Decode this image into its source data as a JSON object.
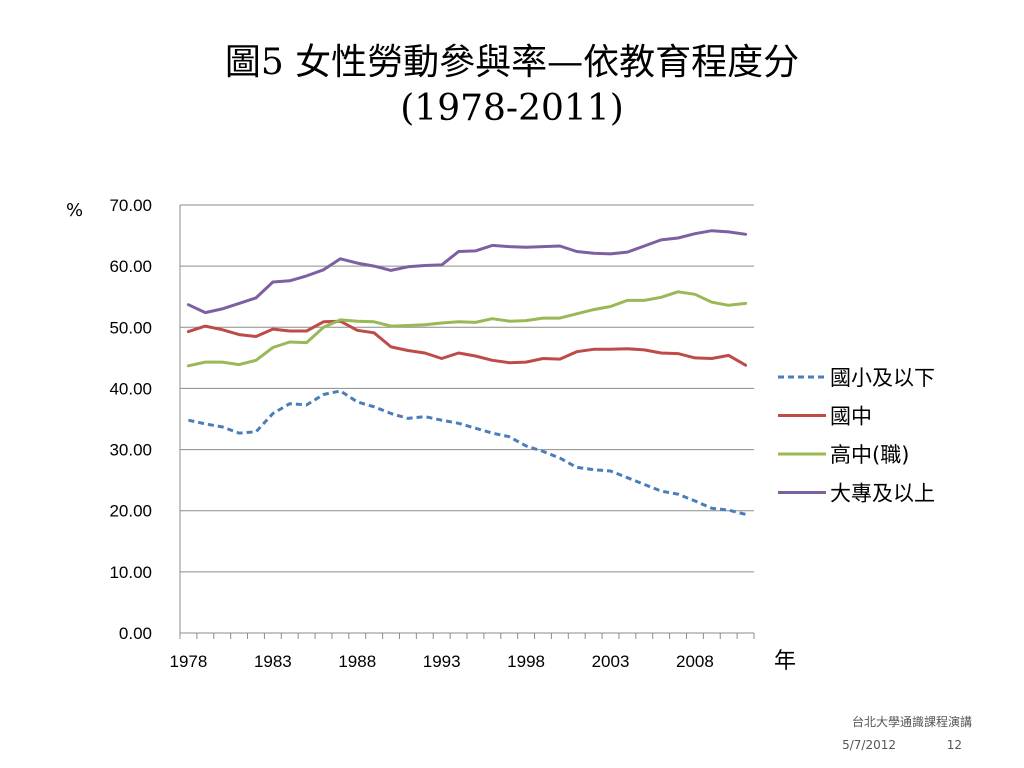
{
  "slide": {
    "title_line1": "圖5 女性勞動參與率—依教育程度分",
    "title_line2": "(1978-2011)"
  },
  "footer": {
    "org": "台北大學通識課程演講",
    "date": "5/7/2012",
    "page": "12"
  },
  "chart_data": {
    "type": "line",
    "title": "",
    "ylabel": "%",
    "xlabel": "年",
    "ylim": [
      0,
      70
    ],
    "yticks": [
      "0.00",
      "10.00",
      "20.00",
      "30.00",
      "40.00",
      "50.00",
      "60.00",
      "70.00"
    ],
    "xticks": [
      "1978",
      "1983",
      "1988",
      "1993",
      "1998",
      "2003",
      "2008"
    ],
    "grid": true,
    "legend_position": "right",
    "x": [
      1978,
      1979,
      1980,
      1981,
      1982,
      1983,
      1984,
      1985,
      1986,
      1987,
      1988,
      1989,
      1990,
      1991,
      1992,
      1993,
      1994,
      1995,
      1996,
      1997,
      1998,
      1999,
      2000,
      2001,
      2002,
      2003,
      2004,
      2005,
      2006,
      2007,
      2008,
      2009,
      2010,
      2011
    ],
    "series": [
      {
        "name": "國小及以下",
        "color": "#4A7EBB",
        "dash": true,
        "values": [
          34.8,
          34.2,
          33.7,
          32.7,
          32.9,
          35.9,
          37.5,
          37.3,
          39.0,
          39.6,
          37.8,
          37.0,
          35.9,
          35.1,
          35.4,
          34.8,
          34.3,
          33.5,
          32.7,
          32.1,
          30.6,
          29.7,
          28.6,
          27.1,
          26.7,
          26.5,
          25.4,
          24.3,
          23.2,
          22.7,
          21.6,
          20.4,
          20.1,
          19.4
        ]
      },
      {
        "name": "國中",
        "color": "#BE4B48",
        "dash": false,
        "values": [
          49.3,
          50.2,
          49.6,
          48.8,
          48.5,
          49.7,
          49.4,
          49.4,
          50.9,
          51.0,
          49.5,
          49.1,
          46.8,
          46.2,
          45.8,
          44.9,
          45.8,
          45.3,
          44.6,
          44.2,
          44.3,
          44.9,
          44.8,
          46.0,
          46.4,
          46.4,
          46.5,
          46.3,
          45.8,
          45.7,
          45.0,
          44.9,
          45.4,
          43.8
        ]
      },
      {
        "name": "高中(職)",
        "color": "#98B954",
        "dash": false,
        "values": [
          43.7,
          44.3,
          44.3,
          43.9,
          44.6,
          46.7,
          47.6,
          47.5,
          50.0,
          51.2,
          51.0,
          50.9,
          50.2,
          50.3,
          50.4,
          50.7,
          50.9,
          50.8,
          51.4,
          51.0,
          51.1,
          51.5,
          51.5,
          52.2,
          52.9,
          53.4,
          54.4,
          54.4,
          54.9,
          55.8,
          55.4,
          54.1,
          53.6,
          53.9
        ]
      },
      {
        "name": "大專及以上",
        "color": "#7D60A0",
        "dash": false,
        "values": [
          53.7,
          52.4,
          53.0,
          53.9,
          54.8,
          57.4,
          57.6,
          58.4,
          59.4,
          61.2,
          60.5,
          60.0,
          59.3,
          59.9,
          60.1,
          60.2,
          62.4,
          62.5,
          63.4,
          63.2,
          63.1,
          63.2,
          63.3,
          62.4,
          62.1,
          62.0,
          62.3,
          63.3,
          64.3,
          64.6,
          65.3,
          65.8,
          65.6,
          65.2
        ]
      }
    ]
  }
}
